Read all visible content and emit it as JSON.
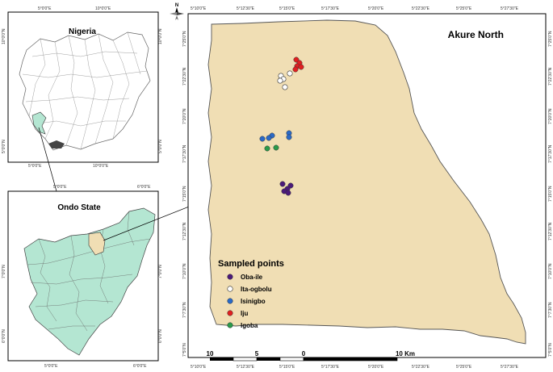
{
  "nigeria_panel": {
    "title": "Nigeria",
    "top_ticks": [
      "5°0'0\"E",
      "10°0'0\"E"
    ],
    "bottom_ticks": [
      "5°0'0\"E",
      "10°0'0\"E"
    ],
    "left_ticks": [
      "10°0'0\"N",
      "5°0'0\"N"
    ],
    "right_ticks": [
      "10°0'0\"N",
      "5°0'0\"N"
    ]
  },
  "ondo_panel": {
    "title": "Ondo State",
    "top_ticks": [
      "5°0'0\"E",
      "6°0'0\"E"
    ],
    "bottom_ticks": [
      "5°0'0\"E",
      "6°0'0\"E"
    ],
    "left_ticks": [
      "7°0'0\"N",
      "6°0'0\"N"
    ],
    "right_ticks": [
      "7°0'0\"N",
      "6°0'0\"N"
    ]
  },
  "main_panel": {
    "title": "Akure North",
    "top_ticks": [
      "5°10'0\"E",
      "5°12'30\"E",
      "5°15'0\"E",
      "5°17'30\"E",
      "5°20'0\"E",
      "5°22'30\"E",
      "5°25'0\"E",
      "5°27'30\"E"
    ],
    "bottom_ticks": [
      "5°10'0\"E",
      "5°12'30\"E",
      "5°15'0\"E",
      "5°17'30\"E",
      "5°20'0\"E",
      "5°22'30\"E",
      "5°25'0\"E",
      "5°27'30\"E"
    ],
    "left_ticks": [
      "7°25'0\"N",
      "7°22'30\"N",
      "7°20'0\"N",
      "7°17'30\"N",
      "7°15'0\"N",
      "7°12'30\"N",
      "7°10'0\"N",
      "7°7'30\"N",
      "7°5'0\"N"
    ],
    "right_ticks": [
      "7°25'0\"N",
      "7°22'30\"N",
      "7°20'0\"N",
      "7°17'30\"N",
      "7°15'0\"N",
      "7°12'30\"N",
      "7°10'0\"N",
      "7°7'30\"N",
      "7°5'0\"N"
    ]
  },
  "legend": {
    "title": "Sampled points",
    "items": [
      {
        "label": "Oba-ile",
        "color": "#4b1a7a"
      },
      {
        "label": "Ita-ogbolu",
        "color": "#ffffff"
      },
      {
        "label": "Isinigbo",
        "color": "#2a6ac8"
      },
      {
        "label": "Iju",
        "color": "#e02020"
      },
      {
        "label": "Igoba",
        "color": "#2a9a4a"
      }
    ]
  },
  "scale_bar": {
    "labels": [
      "10",
      "5",
      "0",
      "10 Km"
    ]
  },
  "north_arrow": {
    "label": "N"
  },
  "colors": {
    "study_area_fill": "#f0deb4",
    "ondo_fill": "#b4e6d2",
    "ondo_highlight": "#f0deb4",
    "boundary": "#555555"
  }
}
